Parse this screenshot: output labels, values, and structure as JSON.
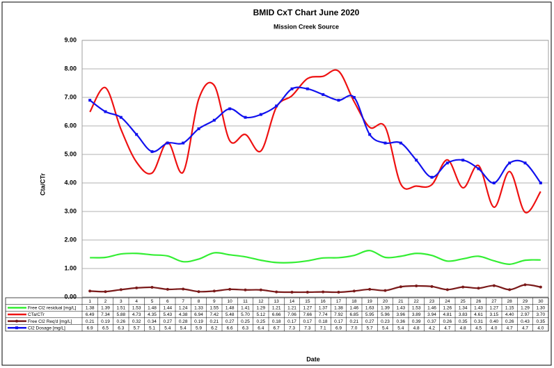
{
  "chart_data": {
    "type": "line",
    "title": "BMID CxT Chart June 2020",
    "subtitle": "Mission Creek Source",
    "y_label": "Cta/CTr",
    "x_label": "Date",
    "categories": [
      "1",
      "2",
      "3",
      "4",
      "5",
      "6",
      "7",
      "8",
      "9",
      "10",
      "11",
      "12",
      "13",
      "14",
      "15",
      "16",
      "17",
      "18",
      "19",
      "20",
      "21",
      "22",
      "23",
      "24",
      "25",
      "26",
      "27",
      "28",
      "29",
      "30"
    ],
    "ylim": [
      0,
      9
    ],
    "yticks": [
      {
        "value": 0,
        "label": "0.00"
      },
      {
        "value": 1,
        "label": "1.00"
      },
      {
        "value": 2,
        "label": "2.00"
      },
      {
        "value": 3,
        "label": "3.00"
      },
      {
        "value": 4,
        "label": "4.00"
      },
      {
        "value": 5,
        "label": "5.00"
      },
      {
        "value": 6,
        "label": "6.00"
      },
      {
        "value": 7,
        "label": "7.00"
      },
      {
        "value": 8,
        "label": "8.00"
      },
      {
        "value": 9,
        "label": "9.00"
      }
    ],
    "grid": true,
    "smooth": true,
    "series": [
      {
        "name": "Free Cl2 residual [mg/L]",
        "color": "#33ee33",
        "values": [
          1.38,
          1.39,
          1.51,
          1.53,
          1.48,
          1.44,
          1.24,
          1.33,
          1.55,
          1.48,
          1.41,
          1.29,
          1.21,
          1.21,
          1.27,
          1.37,
          1.38,
          1.46,
          1.63,
          1.39,
          1.43,
          1.53,
          1.46,
          1.26,
          1.34,
          1.43,
          1.27,
          1.15,
          1.29,
          1.3
        ],
        "value_labels": [
          "1.38",
          "1.39",
          "1.51",
          "1.53",
          "1.48",
          "1.44",
          "1.24",
          "1.33",
          "1.55",
          "1.48",
          "1.41",
          "1.29",
          "1.21",
          "1.21",
          "1.27",
          "1.37",
          "1.38",
          "1.46",
          "1.63",
          "1.39",
          "1.43",
          "1.53",
          "1.46",
          "1.26",
          "1.34",
          "1.43",
          "1.27",
          "1.15",
          "1.29",
          "1.30"
        ]
      },
      {
        "name": "CTa/CTr",
        "color": "#ee1111",
        "values": [
          6.49,
          7.34,
          5.88,
          4.73,
          4.35,
          5.43,
          4.38,
          6.94,
          7.42,
          5.48,
          5.7,
          5.12,
          6.66,
          7.06,
          7.66,
          7.74,
          7.92,
          6.85,
          5.95,
          5.96,
          3.96,
          3.89,
          3.94,
          4.81,
          3.83,
          4.61,
          3.15,
          4.4,
          2.97,
          3.7
        ],
        "value_labels": [
          "6.49",
          "7.34",
          "5.88",
          "4.73",
          "4.35",
          "5.43",
          "4.38",
          "6.94",
          "7.42",
          "5.48",
          "5.70",
          "5.12",
          "6.66",
          "7.06",
          "7.66",
          "7.74",
          "7.92",
          "6.85",
          "5.95",
          "5.96",
          "3.96",
          "3.89",
          "3.94",
          "4.81",
          "3.83",
          "4.61",
          "3.15",
          "4.40",
          "2.97",
          "3.70"
        ]
      },
      {
        "name": "Free Cl2 Req'd [mg/L]",
        "color": "#7a1a1a",
        "marker": "circle",
        "values": [
          0.21,
          0.19,
          0.26,
          0.32,
          0.34,
          0.27,
          0.28,
          0.19,
          0.21,
          0.27,
          0.25,
          0.25,
          0.18,
          0.17,
          0.17,
          0.18,
          0.17,
          0.21,
          0.27,
          0.23,
          0.36,
          0.39,
          0.37,
          0.26,
          0.35,
          0.31,
          0.4,
          0.26,
          0.43,
          0.35
        ],
        "value_labels": [
          "0.21",
          "0.19",
          "0.26",
          "0.32",
          "0.34",
          "0.27",
          "0.28",
          "0.19",
          "0.21",
          "0.27",
          "0.25",
          "0.25",
          "0.18",
          "0.17",
          "0.17",
          "0.18",
          "0.17",
          "0.21",
          "0.27",
          "0.23",
          "0.36",
          "0.39",
          "0.37",
          "0.26",
          "0.35",
          "0.31",
          "0.40",
          "0.26",
          "0.43",
          "0.35"
        ]
      },
      {
        "name": "Cl2 Dosage [mg/L]",
        "color": "#1111ee",
        "marker": "square",
        "values": [
          6.9,
          6.5,
          6.3,
          5.7,
          5.1,
          5.4,
          5.4,
          5.9,
          6.2,
          6.6,
          6.3,
          6.4,
          6.7,
          7.3,
          7.3,
          7.1,
          6.9,
          7,
          5.7,
          5.4,
          5.4,
          4.8,
          4.2,
          4.7,
          4.8,
          4.5,
          4,
          4.7,
          4.7,
          4
        ],
        "value_labels": [
          "6.9",
          "6.5",
          "6.3",
          "5.7",
          "5.1",
          "5.4",
          "5.4",
          "5.9",
          "6.2",
          "6.6",
          "6.3",
          "6.4",
          "6.7",
          "7.3",
          "7.3",
          "7.1",
          "6.9",
          "7.0",
          "5.7",
          "5.4",
          "5.4",
          "4.8",
          "4.2",
          "4.7",
          "4.8",
          "4.5",
          "4.0",
          "4.7",
          "4.7",
          "4.0"
        ]
      }
    ]
  }
}
